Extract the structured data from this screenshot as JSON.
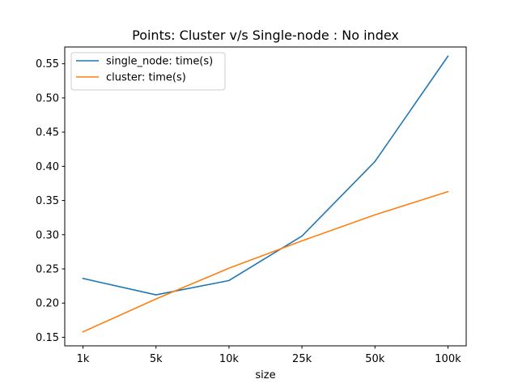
{
  "chart_data": {
    "type": "line",
    "title": "Points: Cluster v/s Single-node : No index",
    "xlabel": "size",
    "ylabel": "",
    "categories": [
      "1k",
      "5k",
      "10k",
      "25k",
      "50k",
      "100k"
    ],
    "yticks": [
      "0.15",
      "0.20",
      "0.25",
      "0.30",
      "0.35",
      "0.40",
      "0.45",
      "0.50",
      "0.55"
    ],
    "ylim": [
      0.1375,
      0.5745
    ],
    "grid": false,
    "legend_position": "top-left",
    "series": [
      {
        "name": "single_node: time(s)",
        "color": "#1f77b4",
        "values": [
          0.236,
          0.212,
          0.233,
          0.298,
          0.407,
          0.561
        ]
      },
      {
        "name": "cluster: time(s)",
        "color": "#ff7f0e",
        "values": [
          0.158,
          0.206,
          0.251,
          0.291,
          0.329,
          0.363
        ]
      }
    ]
  }
}
